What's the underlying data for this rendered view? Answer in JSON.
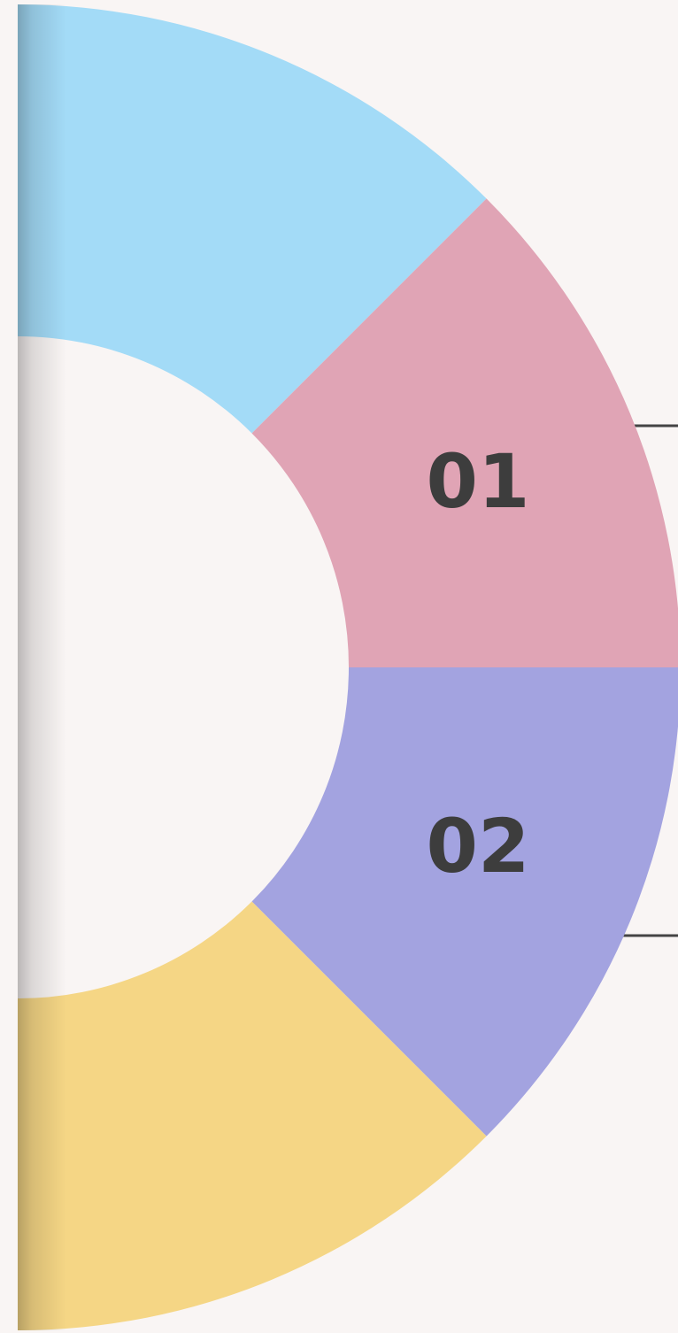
{
  "segments": [
    {
      "label": "01"
    },
    {
      "label": "02"
    }
  ]
}
